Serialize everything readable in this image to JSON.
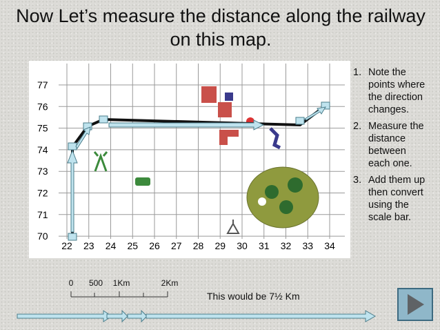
{
  "title": "Now Let’s measure the distance along the railway on this map.",
  "map": {
    "y_labels": [
      "77",
      "76",
      "75",
      "74",
      "73",
      "72",
      "71",
      "70"
    ],
    "x_labels": [
      "22",
      "23",
      "24",
      "25",
      "26",
      "27",
      "28",
      "29",
      "30",
      "31",
      "32",
      "33",
      "34"
    ]
  },
  "steps": [
    {
      "marker": "1.",
      "text": "Note the points where the direction changes."
    },
    {
      "marker": "2.",
      "text": "Measure the distance between each one."
    },
    {
      "marker": "3.",
      "text": "Add them up then convert using the scale bar."
    }
  ],
  "scale_bar": {
    "labels": [
      "0",
      "500",
      "1Km",
      "2Km"
    ]
  },
  "note": "This would be 7½ Km"
}
